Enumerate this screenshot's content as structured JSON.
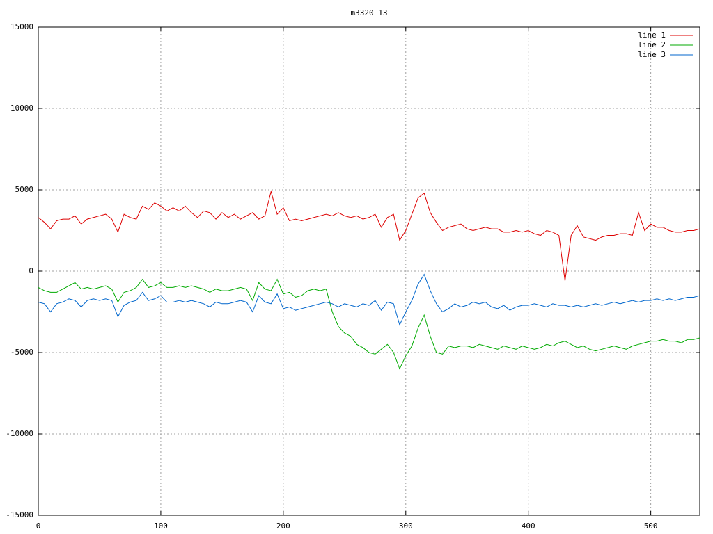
{
  "chart_data": {
    "type": "line",
    "title": "m3320_13",
    "x": [
      0,
      5,
      10,
      15,
      20,
      25,
      30,
      35,
      40,
      45,
      50,
      55,
      60,
      65,
      70,
      75,
      80,
      85,
      90,
      95,
      100,
      105,
      110,
      115,
      120,
      125,
      130,
      135,
      140,
      145,
      150,
      155,
      160,
      165,
      170,
      175,
      180,
      185,
      190,
      195,
      200,
      205,
      210,
      215,
      220,
      225,
      230,
      235,
      240,
      245,
      250,
      255,
      260,
      265,
      270,
      275,
      280,
      285,
      290,
      295,
      300,
      305,
      310,
      315,
      320,
      325,
      330,
      335,
      340,
      345,
      350,
      355,
      360,
      365,
      370,
      375,
      380,
      385,
      390,
      395,
      400,
      405,
      410,
      415,
      420,
      425,
      430,
      435,
      440,
      445,
      450,
      455,
      460,
      465,
      470,
      475,
      480,
      485,
      490,
      495,
      500,
      505,
      510,
      515,
      520,
      525,
      530,
      535,
      540
    ],
    "series": [
      {
        "name": "line 1",
        "color": "#dd0000",
        "values": [
          3300,
          3000,
          2600,
          3100,
          3200,
          3200,
          3400,
          2900,
          3200,
          3300,
          3400,
          3500,
          3200,
          2400,
          3500,
          3300,
          3200,
          4000,
          3800,
          4200,
          4000,
          3700,
          3900,
          3700,
          4000,
          3600,
          3300,
          3700,
          3600,
          3200,
          3600,
          3300,
          3500,
          3200,
          3400,
          3600,
          3200,
          3400,
          4900,
          3500,
          3900,
          3100,
          3200,
          3100,
          3200,
          3300,
          3400,
          3500,
          3400,
          3600,
          3400,
          3300,
          3400,
          3200,
          3300,
          3500,
          2700,
          3300,
          3500,
          1900,
          2500,
          3500,
          4500,
          4800,
          3600,
          3000,
          2500,
          2700,
          2800,
          2900,
          2600,
          2500,
          2600,
          2700,
          2600,
          2600,
          2400,
          2400,
          2500,
          2400,
          2500,
          2300,
          2200,
          2500,
          2400,
          2200,
          -600,
          2200,
          2800,
          2100,
          2000,
          1900,
          2100,
          2200,
          2200,
          2300,
          2300,
          2200,
          3600,
          2500,
          2900,
          2700,
          2700,
          2500,
          2400,
          2400,
          2500,
          2500,
          2600
        ]
      },
      {
        "name": "line 2",
        "color": "#00aa00",
        "values": [
          -1000,
          -1200,
          -1300,
          -1300,
          -1100,
          -900,
          -700,
          -1100,
          -1000,
          -1100,
          -1000,
          -900,
          -1100,
          -1900,
          -1300,
          -1200,
          -1000,
          -500,
          -1000,
          -900,
          -700,
          -1000,
          -1000,
          -900,
          -1000,
          -900,
          -1000,
          -1100,
          -1300,
          -1100,
          -1200,
          -1200,
          -1100,
          -1000,
          -1100,
          -1800,
          -700,
          -1100,
          -1200,
          -500,
          -1400,
          -1300,
          -1600,
          -1500,
          -1200,
          -1100,
          -1200,
          -1100,
          -2500,
          -3400,
          -3800,
          -4000,
          -4500,
          -4700,
          -5000,
          -5100,
          -4800,
          -4500,
          -5000,
          -6000,
          -5200,
          -4600,
          -3500,
          -2700,
          -4000,
          -5000,
          -5100,
          -4600,
          -4700,
          -4600,
          -4600,
          -4700,
          -4500,
          -4600,
          -4700,
          -4800,
          -4600,
          -4700,
          -4800,
          -4600,
          -4700,
          -4800,
          -4700,
          -4500,
          -4600,
          -4400,
          -4300,
          -4500,
          -4700,
          -4600,
          -4800,
          -4900,
          -4800,
          -4700,
          -4600,
          -4700,
          -4800,
          -4600,
          -4500,
          -4400,
          -4300,
          -4300,
          -4200,
          -4300,
          -4300,
          -4400,
          -4200,
          -4200,
          -4100
        ]
      },
      {
        "name": "line 3",
        "color": "#0066cc",
        "values": [
          -1900,
          -2000,
          -2500,
          -2000,
          -1900,
          -1700,
          -1800,
          -2200,
          -1800,
          -1700,
          -1800,
          -1700,
          -1800,
          -2800,
          -2100,
          -1900,
          -1800,
          -1300,
          -1800,
          -1700,
          -1500,
          -1900,
          -1900,
          -1800,
          -1900,
          -1800,
          -1900,
          -2000,
          -2200,
          -1900,
          -2000,
          -2000,
          -1900,
          -1800,
          -1900,
          -2500,
          -1500,
          -1900,
          -2000,
          -1400,
          -2300,
          -2200,
          -2400,
          -2300,
          -2200,
          -2100,
          -2000,
          -1900,
          -2000,
          -2200,
          -2000,
          -2100,
          -2200,
          -2000,
          -2100,
          -1800,
          -2400,
          -1900,
          -2000,
          -3300,
          -2500,
          -1800,
          -800,
          -200,
          -1200,
          -2000,
          -2500,
          -2300,
          -2000,
          -2200,
          -2100,
          -1900,
          -2000,
          -1900,
          -2200,
          -2300,
          -2100,
          -2400,
          -2200,
          -2100,
          -2100,
          -2000,
          -2100,
          -2200,
          -2000,
          -2100,
          -2100,
          -2200,
          -2100,
          -2200,
          -2100,
          -2000,
          -2100,
          -2000,
          -1900,
          -2000,
          -1900,
          -1800,
          -1900,
          -1800,
          -1800,
          -1700,
          -1800,
          -1700,
          -1800,
          -1700,
          -1600,
          -1600,
          -1500
        ]
      }
    ],
    "xlim": [
      0,
      540
    ],
    "xticks": [
      0,
      100,
      200,
      300,
      400,
      500
    ],
    "ylim": [
      -15000,
      15000
    ],
    "yticks": [
      -15000,
      -10000,
      -5000,
      0,
      5000,
      10000,
      15000
    ],
    "grid": true,
    "legend": "top-right"
  }
}
